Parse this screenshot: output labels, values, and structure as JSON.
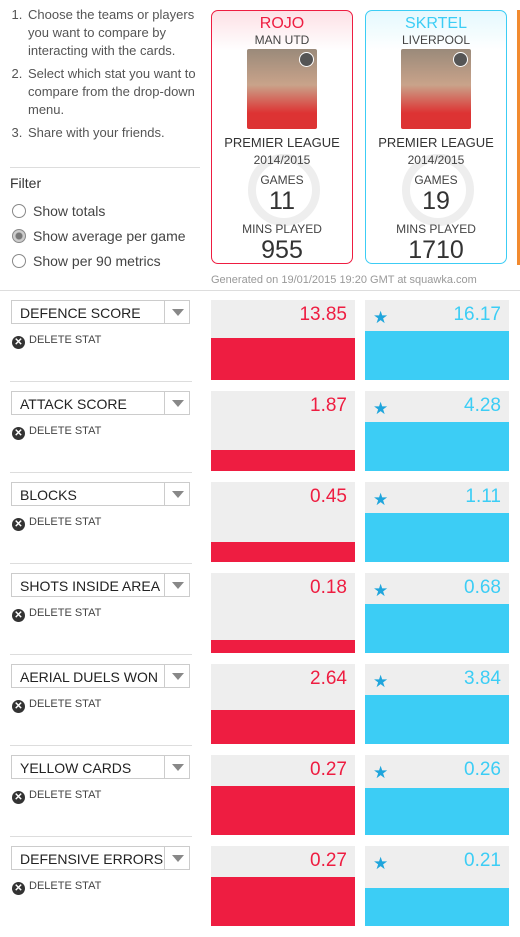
{
  "instructions": [
    "Choose the teams or players you want to compare by interacting with the cards.",
    "Select which stat you want to compare from the drop-down menu.",
    "Share with your friends."
  ],
  "filter": {
    "title": "Filter",
    "options": [
      "Show totals",
      "Show average per game",
      "Show per 90 metrics"
    ],
    "selected": 1
  },
  "players": [
    {
      "name": "ROJO",
      "team": "MAN UTD",
      "league": "PREMIER LEAGUE",
      "season": "2014/2015",
      "games_label": "GAMES",
      "games": 11,
      "mins_label": "MINS PLAYED",
      "mins": 955,
      "color": "#ee1d41"
    },
    {
      "name": "SKRTEL",
      "team": "LIVERPOOL",
      "league": "PREMIER LEAGUE",
      "season": "2014/2015",
      "games_label": "GAMES",
      "games": 19,
      "mins_label": "MINS PLAYED",
      "mins": 1710,
      "color": "#3ccdf5"
    }
  ],
  "generated": "Generated on 19/01/2015 19:20 GMT at squawka.com",
  "delete_label": "DELETE STAT",
  "stats": [
    {
      "name": "DEFENCE SCORE",
      "values": [
        13.85,
        16.17
      ]
    },
    {
      "name": "ATTACK SCORE",
      "values": [
        1.87,
        4.28
      ]
    },
    {
      "name": "BLOCKS",
      "values": [
        0.45,
        1.11
      ]
    },
    {
      "name": "SHOTS INSIDE AREA",
      "values": [
        0.18,
        0.68
      ]
    },
    {
      "name": "AERIAL DUELS WON",
      "values": [
        2.64,
        3.84
      ]
    },
    {
      "name": "YELLOW CARDS",
      "values": [
        0.27,
        0.26
      ]
    },
    {
      "name": "DEFENSIVE ERRORS",
      "values": [
        0.27,
        0.21
      ]
    }
  ]
}
